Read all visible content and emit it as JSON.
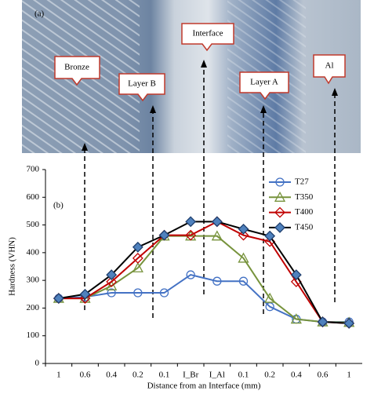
{
  "chart_data": {
    "type": "line",
    "annotations": [
      "(a)",
      "Bronze",
      "Layer B",
      "Interface",
      "Layer A",
      "Al",
      "(b)"
    ],
    "x_label": "Distance from an Interface (mm)",
    "y_label": "Hardness (VHN)",
    "categories": [
      "1",
      "0.6",
      "0.4",
      "0.2",
      "0.1",
      "I_Br",
      "I_Al",
      "0.1",
      "0.2",
      "0.4",
      "0.6",
      "1"
    ],
    "ylim": [
      0,
      700
    ],
    "yticks": [
      0,
      100,
      200,
      300,
      400,
      500,
      600,
      700
    ],
    "series": [
      {
        "name": "T27",
        "color": "#4472c4",
        "marker": "circle",
        "marker_fill": "none",
        "values": [
          235,
          240,
          255,
          255,
          255,
          320,
          297,
          297,
          205,
          160,
          150,
          150
        ]
      },
      {
        "name": "T350",
        "color": "#77933c",
        "marker": "triangle",
        "marker_fill": "none",
        "values": [
          235,
          235,
          280,
          345,
          460,
          460,
          460,
          380,
          235,
          160,
          150,
          148
        ]
      },
      {
        "name": "T400",
        "color": "#c00000",
        "marker": "diamond",
        "marker_fill": "none",
        "values": [
          235,
          235,
          295,
          380,
          463,
          463,
          512,
          463,
          440,
          295,
          150,
          145
        ]
      },
      {
        "name": "T450",
        "color": "#000000",
        "marker": "diamond",
        "marker_fill": "#4f81bd",
        "values": [
          235,
          250,
          320,
          420,
          463,
          512,
          512,
          485,
          460,
          320,
          150,
          145
        ]
      }
    ]
  }
}
